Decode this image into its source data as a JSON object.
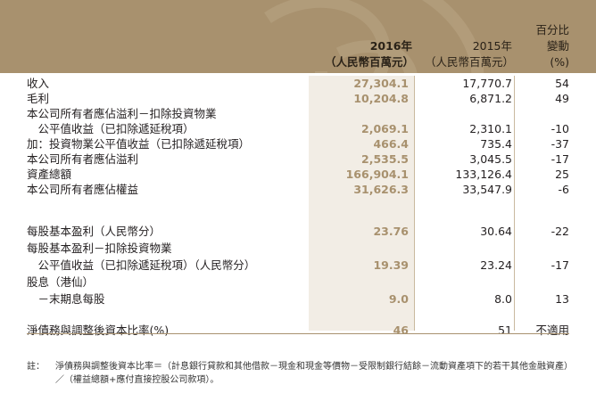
{
  "header": {
    "col_2016_year": "2016年",
    "col_2016_unit": "（人民幣百萬元）",
    "col_2015_year": "2015年",
    "col_2015_unit": "（人民幣百萬元）",
    "col_pct_l1": "百分比",
    "col_pct_l2": "變動",
    "col_pct_l3": "(%)"
  },
  "rows": [
    {
      "label": "收入",
      "v2016": "27,304.1",
      "v2015": "17,770.7",
      "pct": "54"
    },
    {
      "label": "毛利",
      "v2016": "10,204.8",
      "v2015": "6,871.2",
      "pct": "49"
    },
    {
      "label": "本公司所有者應佔溢利－扣除投資物業",
      "v2016": "",
      "v2015": "",
      "pct": ""
    },
    {
      "label": "　公平值收益（已扣除遞延稅項）",
      "v2016": "2,069.1",
      "v2015": "2,310.1",
      "pct": "-10"
    },
    {
      "label": "加：投資物業公平值收益（已扣除遞延稅項）",
      "v2016": "466.4",
      "v2015": "735.4",
      "pct": "-37"
    },
    {
      "label": "本公司所有者應佔溢利",
      "v2016": "2,535.5",
      "v2015": "3,045.5",
      "pct": "-17"
    },
    {
      "label": "資產總額",
      "v2016": "166,904.1",
      "v2015": "133,126.4",
      "pct": "25"
    },
    {
      "label": "本公司所有者應佔權益",
      "v2016": "31,626.3",
      "v2015": "33,547.9",
      "pct": "-6"
    },
    {
      "label": "每股基本盈利（人民幣分）",
      "v2016": "23.76",
      "v2015": "30.64",
      "pct": "-22"
    },
    {
      "label": "每股基本盈利－扣除投資物業",
      "v2016": "",
      "v2015": "",
      "pct": ""
    },
    {
      "label": "　公平值收益（已扣除遞延稅項）（人民幣分）",
      "v2016": "19.39",
      "v2015": "23.24",
      "pct": "-17"
    },
    {
      "label": "股息（港仙）",
      "v2016": "",
      "v2015": "",
      "pct": ""
    },
    {
      "label": "　－末期息每股",
      "v2016": "9.0",
      "v2015": "8.0",
      "pct": "13"
    },
    {
      "label": "淨債務與調整後資本比率(%)",
      "v2016": "46",
      "v2015": "51",
      "pct": "不適用"
    }
  ],
  "note": {
    "label": "註：",
    "text": "淨債務與調整後資本比率＝（計息銀行貸款和其他借款－現金和現金等價物－受限制銀行結餘－流動資產項下的若干其他金融資產）／（權益總額+應付直接控股公司款項）。"
  },
  "colors": {
    "header_bg": "#a8916e",
    "accent": "#a8916e",
    "col_bg": "#f2ede5"
  }
}
